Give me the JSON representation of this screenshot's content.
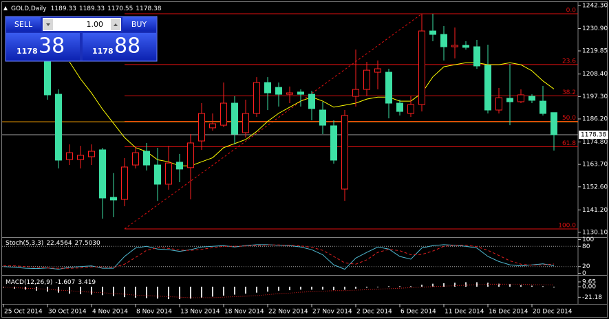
{
  "chart_data": [
    {
      "type": "candlestick",
      "title": "GOLD,Daily",
      "categories": [
        "25 Oct 2014",
        null,
        null,
        null,
        "30 Oct 2014",
        null,
        null,
        null,
        "4 Nov 2014",
        null,
        null,
        null,
        "8 Nov 2014",
        null,
        null,
        null,
        "13 Nov 2014",
        null,
        null,
        null,
        "18 Nov 2014",
        null,
        null,
        null,
        "22 Nov 2014",
        null,
        null,
        null,
        "27 Nov 2014",
        null,
        null,
        null,
        "2 Dec 2014",
        null,
        null,
        null,
        "6 Dec 2014",
        null,
        null,
        null,
        "11 Dec 2014",
        null,
        null,
        null,
        "16 Dec 2014",
        null,
        null,
        null,
        "20 Dec 2014",
        null,
        null
      ],
      "open": [
        null,
        null,
        null,
        null,
        1216,
        1198.4,
        1166.1,
        1166.1,
        1167.5,
        1170.9,
        1147.4,
        1146.4,
        1163.4,
        1170.2,
        1163.4,
        1153.9,
        1164.8,
        1162.1,
        1175.3,
        1181.8,
        1183.1,
        1194.0,
        1179.4,
        1188.9,
        1204.2,
        1201.8,
        1198.4,
        1199.5,
        1198.4,
        1190.6,
        1182.8,
        1151.5,
        1197.4,
        1200.8,
        1209.3,
        1209.3,
        1194.0,
        1188.9,
        1193.3,
        1229.7,
        1228.0,
        1221.9,
        1222.6,
        1221.9,
        1212.7,
        1190.6,
        1196.4,
        1194.7,
        1197.4,
        1195.0,
        1189.33
      ],
      "high": [
        null,
        null,
        null,
        null,
        1218.0,
        1200.8,
        1173.6,
        1172.9,
        1173.6,
        1171.9,
        1159.4,
        1166.8,
        1172.6,
        1174.3,
        1171.9,
        1172.9,
        1168.9,
        1178.7,
        1194.0,
        1188.9,
        1204.2,
        1197.4,
        1195.7,
        1206.9,
        1206.9,
        1204.2,
        1202.2,
        1200.8,
        1200.1,
        1194.7,
        1185.5,
        1190.6,
        1220.5,
        1214.4,
        1215.1,
        1211.0,
        1195.7,
        1197.4,
        1238.2,
        1238.2,
        1232.1,
        1231.4,
        1224.6,
        1225.3,
        1222.9,
        1201.5,
        1213.4,
        1200.8,
        1198.4,
        1202.5,
        1189.33
      ],
      "low": [
        null,
        null,
        null,
        null,
        1195.7,
        1161.7,
        1163.4,
        1161.7,
        1163.4,
        1136.9,
        1137.6,
        1143.0,
        1161.7,
        1160.7,
        1145.7,
        1151.2,
        1154.9,
        1146.4,
        1170.9,
        1180.4,
        1182.1,
        1173.6,
        1177.0,
        1187.2,
        1190.6,
        1192.3,
        1194.0,
        1192.3,
        1185.5,
        1178.7,
        1164.1,
        1145.7,
        1192.3,
        1197.4,
        1200.8,
        1186.5,
        1187.9,
        1187.2,
        1189.9,
        1224.6,
        1215.1,
        1216.1,
        1220.5,
        1211.0,
        1188.9,
        1188.9,
        1183.1,
        1194.0,
        1194.0,
        1187.9,
        1170.55
      ],
      "close": [
        null,
        null,
        null,
        null,
        1198.1,
        1165.8,
        1169.5,
        1168.2,
        1170.2,
        1147.1,
        1146.1,
        1162.4,
        1169.5,
        1163.4,
        1153.9,
        1164.4,
        1161.4,
        1174.3,
        1188.9,
        1183.8,
        1194.0,
        1178.7,
        1188.9,
        1204.2,
        1199.1,
        1198.4,
        1199.1,
        1198.4,
        1191.3,
        1183.1,
        1165.8,
        1187.9,
        1200.8,
        1210.3,
        1211.0,
        1194.0,
        1189.9,
        1193.3,
        1229.7,
        1228.0,
        1221.9,
        1222.6,
        1221.6,
        1212.4,
        1190.6,
        1196.7,
        1194.7,
        1198.1,
        1195.4,
        1188.9,
        1178.38
      ],
      "up_color": "#ff2020",
      "down_color": "#3de0a4",
      "ma": {
        "color": "#ffff00",
        "values": [
          null,
          null,
          null,
          null,
          null,
          null,
          1214.4,
          1206,
          1199,
          1191,
          1184,
          1177,
          1172,
          1170,
          1166,
          1165,
          1163,
          1163,
          1165,
          1167,
          1172,
          1174,
          1176,
          1180,
          1185,
          1189,
          1192,
          1195,
          1197,
          1195,
          1192,
          1193,
          1194,
          1196,
          1197,
          1197,
          1195,
          1195,
          1199,
          1207,
          1212,
          1213,
          1214,
          1214,
          1213,
          1213,
          1214,
          1213,
          1210,
          1205,
          1201
        ]
      },
      "fib": {
        "color": "#e01010",
        "anchor": [
          11,
          38
        ],
        "levels": [
          {
            "label": "0.0",
            "value": 1238.2
          },
          {
            "label": "23.6",
            "value": 1213.1
          },
          {
            "label": "38.2",
            "value": 1197.6
          },
          {
            "label": "50.0",
            "value": 1185.0
          },
          {
            "label": "61.8",
            "value": 1172.4
          },
          {
            "label": "100.0",
            "value": 1131.8
          }
        ]
      },
      "hline": {
        "value": 1184.8,
        "color": "#ffa500"
      },
      "bid_color": "#a0a0a0",
      "ylim": [
        1127.7,
        1244.0
      ],
      "yticks": [
        {
          "value": 1242.3,
          "label": "1242.30"
        },
        {
          "value": 1230.9,
          "label": "1230.90"
        },
        {
          "value": 1219.85,
          "label": "1219.85"
        },
        {
          "value": 1208.4,
          "label": "1208.40"
        },
        {
          "value": 1197.3,
          "label": "1197.30"
        },
        {
          "value": 1186.2,
          "label": "1186.20"
        },
        {
          "value": 1174.8,
          "label": "1174.80"
        },
        {
          "value": 1163.7,
          "label": "1163.70"
        },
        {
          "value": 1152.6,
          "label": "1152.60"
        },
        {
          "value": 1141.2,
          "label": "1141.20"
        },
        {
          "value": 1130.1,
          "label": "1130.10"
        }
      ]
    },
    {
      "type": "line",
      "title": "Stoch(5,3,3)",
      "series": [
        {
          "color": "#4fb8d0",
          "values": [
            20,
            18,
            15,
            14,
            16,
            12,
            18,
            20,
            22,
            15,
            15,
            50,
            75,
            80,
            72,
            70,
            65,
            70,
            78,
            80,
            82,
            78,
            82,
            85,
            85,
            83,
            82,
            78,
            70,
            55,
            25,
            12,
            45,
            62,
            78,
            72,
            50,
            42,
            75,
            82,
            85,
            83,
            80,
            75,
            50,
            35,
            25,
            22,
            25,
            28,
            22.4564
          ]
        },
        {
          "color": "#e02020",
          "style": "dash",
          "values": [
            22,
            22,
            20,
            18,
            16,
            15,
            15,
            16,
            19,
            19,
            17,
            27,
            47,
            68,
            76,
            74,
            69,
            68,
            71,
            76,
            80,
            80,
            81,
            82,
            84,
            84,
            83,
            81,
            77,
            68,
            50,
            31,
            27,
            40,
            62,
            71,
            67,
            55,
            56,
            66,
            80,
            83,
            83,
            79,
            68,
            53,
            37,
            27,
            24,
            25,
            27.503
          ],
          "value_labels": [
            null,
            null,
            null,
            null,
            null,
            null,
            null,
            null,
            null,
            null,
            null,
            null,
            null,
            null,
            null,
            null,
            null,
            null,
            null,
            null,
            null,
            null,
            null,
            null,
            null,
            null,
            null,
            null,
            null,
            null,
            null,
            null,
            null,
            null,
            null,
            null,
            null,
            null,
            null,
            null,
            null,
            null,
            null,
            null,
            null,
            null,
            null,
            null,
            null,
            null,
            "27.5030"
          ]
        }
      ],
      "levels": [
        80,
        20
      ],
      "ylim": [
        -5,
        105
      ],
      "yticks": [
        100,
        80,
        20,
        0
      ]
    },
    {
      "type": "macd",
      "title": "MACD(12,26,9)",
      "histogram": {
        "color": "#d8d8d8",
        "values": [
          -2,
          -4,
          -6,
          -8,
          -10,
          -12,
          -14,
          -15,
          -16,
          -17,
          -19,
          -21,
          -22,
          -23,
          -24,
          -25,
          -25,
          -24,
          -22,
          -20,
          -18,
          -16,
          -14,
          -12,
          -10,
          -8,
          -7,
          -6,
          -6,
          -6,
          -7,
          -6,
          -4,
          -2,
          0,
          1,
          1,
          1,
          4,
          6,
          7,
          8,
          9,
          9,
          8,
          6,
          5,
          3,
          2,
          1,
          -1.607
        ]
      },
      "signal": {
        "color": "#e02020",
        "style": "dot",
        "values": [
          -1,
          -2,
          -3,
          -4,
          -5,
          -7,
          -8,
          -10,
          -11,
          -12,
          -14,
          -15,
          -17,
          -18,
          -19,
          -20,
          -21,
          -22,
          -22,
          -22,
          -21,
          -20,
          -19,
          -18,
          -16,
          -14,
          -13,
          -11,
          -10,
          -9,
          -8,
          -8,
          -7,
          -6,
          -5,
          -4,
          -3,
          -2,
          -1,
          0,
          1,
          2,
          3,
          4,
          5,
          5,
          5,
          5,
          4,
          4,
          3.419
        ]
      },
      "ylim": [
        -34.5,
        20.7
      ],
      "yticks": [
        9.65,
        {
          "value": 0,
          "label": "0.00"
        },
        -21.18
      ]
    }
  ],
  "trade_panel": {
    "sell": "SELL",
    "lots": "1.00",
    "buy": "BUY",
    "sell_price": {
      "big": "1178",
      "pips": "38"
    },
    "buy_price": {
      "big": "1178",
      "pips": "88"
    }
  }
}
